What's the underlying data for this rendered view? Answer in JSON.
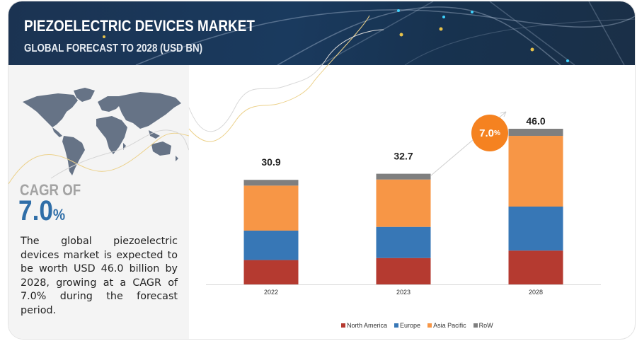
{
  "header": {
    "title": "PIEZOELECTRIC DEVICES MARKET",
    "subtitle": "GLOBAL FORECAST TO 2028 (USD BN)"
  },
  "left_panel": {
    "map_icon": "world-map-icon",
    "cagr_label": "CAGR OF",
    "cagr_number": "7.0",
    "cagr_unit": "%",
    "summary": "The global piezoelectric devices market is expected to be worth USD 46.0  billion by 2028, growing at a CAGR of 7.0% during the forecast period."
  },
  "badge": {
    "number": "7.0",
    "unit": "%"
  },
  "colors": {
    "north_america": "#b53a30",
    "europe": "#3777b6",
    "asia_pacific": "#f79646",
    "row": "#7f7f7f",
    "badge": "#f58220",
    "cagr_text": "#2f6ea8"
  },
  "chart_data": {
    "type": "bar",
    "stacked": true,
    "title": "Piezoelectric Devices Market, Global Forecast to 2028 (USD BN)",
    "xlabel": "",
    "ylabel": "",
    "categories": [
      "2022",
      "2023",
      "2028"
    ],
    "totals": [
      "30.9",
      "32.7",
      "46.0"
    ],
    "series": [
      {
        "name": "North America",
        "color": "#b53a30",
        "values": [
          7.2,
          7.8,
          10.0
        ]
      },
      {
        "name": "Europe",
        "color": "#3777b6",
        "values": [
          8.7,
          9.2,
          13.0
        ]
      },
      {
        "name": "Asia Pacific",
        "color": "#f79646",
        "values": [
          13.3,
          14.0,
          20.9
        ]
      },
      {
        "name": "RoW",
        "color": "#7f7f7f",
        "values": [
          1.7,
          1.7,
          2.1
        ]
      }
    ],
    "ylim": [
      0,
      46.0
    ],
    "grid": false,
    "legend": "bottom-center",
    "annotation": "7.0% CAGR"
  }
}
